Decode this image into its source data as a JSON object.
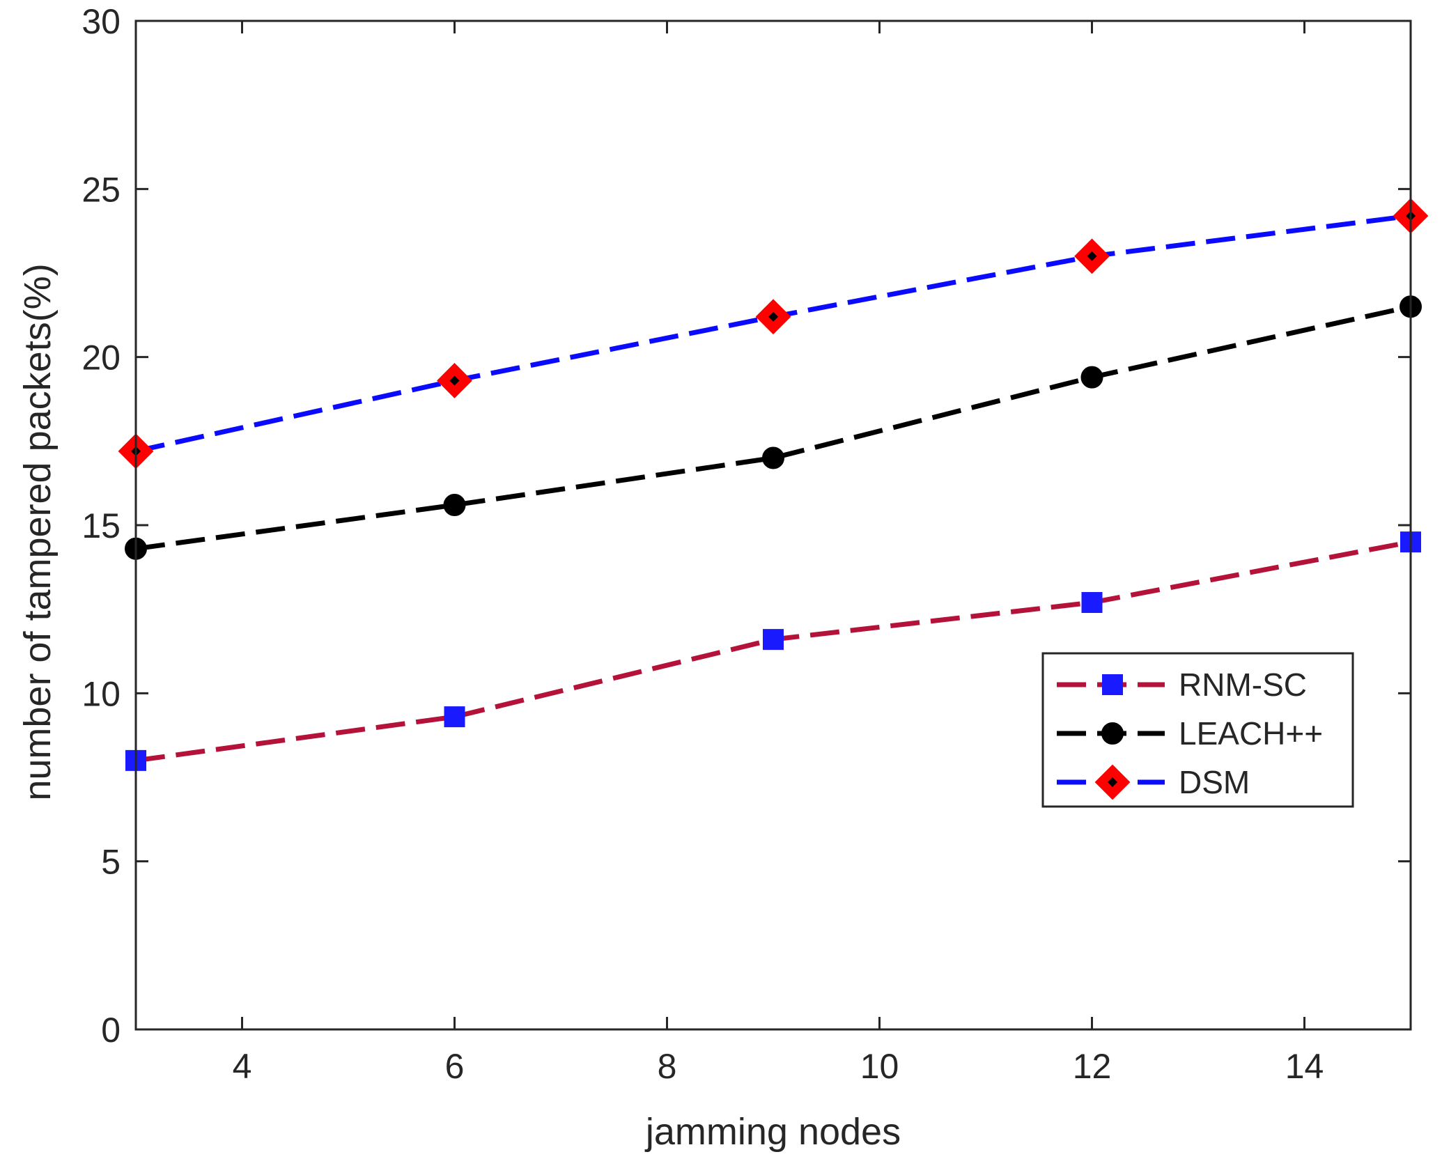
{
  "chart_data": {
    "type": "line",
    "title": "",
    "xlabel": "jamming nodes",
    "ylabel": "number of tampered packets(%)",
    "xlim": [
      3,
      15
    ],
    "ylim": [
      0,
      30
    ],
    "xticks": [
      4,
      6,
      8,
      10,
      12,
      14
    ],
    "yticks": [
      0,
      5,
      10,
      15,
      20,
      25,
      30
    ],
    "grid": false,
    "legend_position": "center-right",
    "x": [
      3,
      6,
      9,
      12,
      15
    ],
    "series": [
      {
        "name": "RNM-SC",
        "values": [
          8.0,
          9.3,
          11.6,
          12.7,
          14.5
        ],
        "line_color": "#b5123a",
        "marker": "square",
        "marker_color": "#1a1aff",
        "marker_edge": "#1a1aff"
      },
      {
        "name": "LEACH++",
        "values": [
          14.3,
          15.6,
          17.0,
          19.4,
          21.5
        ],
        "line_color": "#000000",
        "marker": "circle",
        "marker_color": "#000000",
        "marker_edge": "#000000"
      },
      {
        "name": "DSM",
        "values": [
          17.2,
          19.3,
          21.2,
          23.0,
          24.2
        ],
        "line_color": "#0a0aff",
        "marker": "diamond",
        "marker_color": "#000000",
        "marker_edge": "#ff0000"
      }
    ]
  }
}
